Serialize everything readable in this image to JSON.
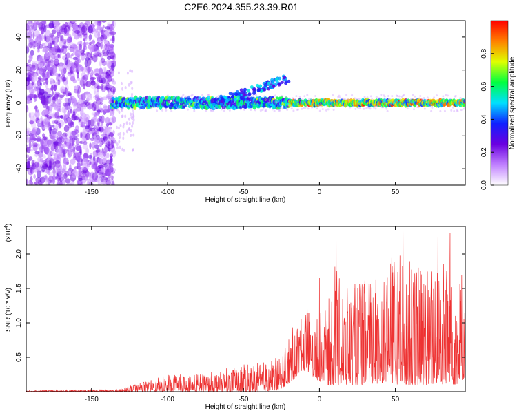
{
  "title": "C2E6.2024.355.23.39.R01",
  "chart_data": [
    {
      "type": "heatmap",
      "xlabel": "Height of straight line (km)",
      "ylabel": "Frequency (Hz)",
      "xlim": [
        -193,
        96
      ],
      "ylim": [
        -50,
        50
      ],
      "x_ticks": [
        -150,
        -100,
        -50,
        0,
        50
      ],
      "y_ticks": [
        -40,
        -20,
        0,
        20,
        40
      ],
      "colorbar": {
        "label": "Normalized spectral amplitude",
        "range": [
          0.0,
          1.0
        ],
        "ticks": [
          "0.0",
          "0.2",
          "0.4",
          "0.6",
          "0.8"
        ],
        "colors": [
          "#ffffff",
          "#c080ff",
          "#6a00e0",
          "#1020ff",
          "#00e0ff",
          "#00ff40",
          "#e0ff00",
          "#ff8000",
          "#ff0000"
        ]
      },
      "features": {
        "noise_region_x": [
          -193,
          -137
        ],
        "main_band_x": [
          -137,
          96
        ],
        "main_band_center_hz": 0,
        "rising_branch": {
          "x": [
            -70,
            -20
          ],
          "freq_hz": [
            0,
            15
          ]
        }
      }
    },
    {
      "type": "line",
      "xlabel": "Height of straight line (km)",
      "ylabel": "SNR (10 * v/v)",
      "y_multiplier_label": "(x10",
      "y_multiplier_exp": "4",
      "xlim": [
        -193,
        96
      ],
      "ylim": [
        0,
        2.4
      ],
      "x_ticks": [
        -150,
        -100,
        -50,
        0,
        50
      ],
      "y_ticks": [
        "0.5",
        "1.0",
        "1.5",
        "2.0"
      ],
      "y_tick_values": [
        0.5,
        1.0,
        1.5,
        2.0
      ],
      "color": "#ee3333",
      "envelope": {
        "x": [
          -193,
          -135,
          -125,
          -110,
          -100,
          -85,
          -70,
          -55,
          -40,
          -28,
          -25,
          -22,
          -16,
          -12,
          -8,
          -4,
          0,
          5,
          10,
          15,
          25,
          35,
          45,
          50,
          55,
          65,
          75,
          85,
          90,
          96
        ],
        "y_min": [
          0,
          0,
          0,
          0,
          0,
          0,
          0,
          0,
          0,
          0.02,
          0.05,
          0.08,
          0.2,
          0.3,
          0.3,
          0.2,
          0.15,
          0.1,
          0.1,
          0.1,
          0.1,
          0.1,
          0.15,
          0.1,
          0.1,
          0.1,
          0.1,
          0.1,
          0.1,
          0.2
        ],
        "y_max": [
          0.02,
          0.03,
          0.08,
          0.18,
          0.25,
          0.25,
          0.3,
          0.38,
          0.42,
          0.5,
          0.55,
          0.65,
          1.05,
          0.85,
          1.3,
          0.9,
          1.2,
          1.2,
          1.9,
          1.5,
          1.6,
          1.7,
          1.9,
          2.1,
          2.0,
          1.85,
          1.9,
          2.0,
          1.7,
          1.8
        ]
      },
      "peaks": [
        {
          "x": 11,
          "y": 2.2
        },
        {
          "x": 55,
          "y": 2.4
        },
        {
          "x": 78,
          "y": 2.25
        },
        {
          "x": 0,
          "y": 1.65
        },
        {
          "x": -12,
          "y": 1.05
        },
        {
          "x": 86,
          "y": 2.3
        }
      ]
    }
  ]
}
